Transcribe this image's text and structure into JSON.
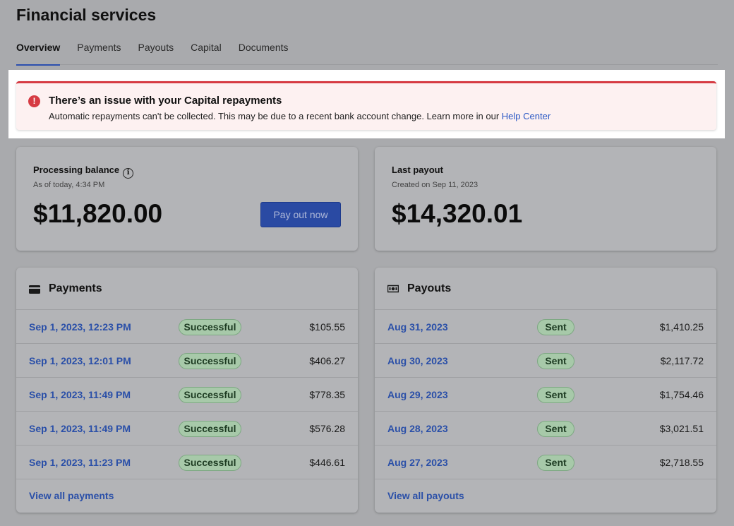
{
  "page": {
    "title": "Financial services"
  },
  "tabs": [
    {
      "label": "Overview",
      "active": true
    },
    {
      "label": "Payments",
      "active": false
    },
    {
      "label": "Payouts",
      "active": false
    },
    {
      "label": "Capital",
      "active": false
    },
    {
      "label": "Documents",
      "active": false
    }
  ],
  "alert": {
    "title": "There’s an issue with your Capital repayments",
    "message": "Automatic repayments can't be collected. This may be due to a recent bank account change. Learn more in our ",
    "link": "Help Center",
    "icon": "error-icon",
    "color": "#d63b43"
  },
  "balance": {
    "label": "Processing balance",
    "info_icon": "i",
    "subtext": "As of today, 4:34 PM",
    "amount": "$11,820.00",
    "button": "Pay out now"
  },
  "last_payout": {
    "label": "Last payout",
    "subtext": "Created on Sep 11, 2023",
    "amount": "$14,320.01"
  },
  "payments": {
    "title": "Payments",
    "icon": "card-icon",
    "rows": [
      {
        "date": "Sep 1, 2023, 12:23 PM",
        "status": "Successful",
        "amount": "$105.55"
      },
      {
        "date": "Sep 1, 2023, 12:01 PM",
        "status": "Successful",
        "amount": "$406.27"
      },
      {
        "date": "Sep 1, 2023, 11:49 PM",
        "status": "Successful",
        "amount": "$778.35"
      },
      {
        "date": "Sep 1, 2023, 11:49 PM",
        "status": "Successful",
        "amount": "$576.28"
      },
      {
        "date": "Sep 1, 2023, 11:23 PM",
        "status": "Successful",
        "amount": "$446.61"
      }
    ],
    "view_all": "View all payments"
  },
  "payouts": {
    "title": "Payouts",
    "icon": "cash-icon",
    "rows": [
      {
        "date": "Aug 31, 2023",
        "status": "Sent",
        "amount": "$1,410.25"
      },
      {
        "date": "Aug 30, 2023",
        "status": "Sent",
        "amount": "$2,117.72"
      },
      {
        "date": "Aug 29, 2023",
        "status": "Sent",
        "amount": "$1,754.46"
      },
      {
        "date": "Aug 28, 2023",
        "status": "Sent",
        "amount": "$3,021.51"
      },
      {
        "date": "Aug 27, 2023",
        "status": "Sent",
        "amount": "$2,718.55"
      }
    ],
    "view_all": "View all payouts"
  }
}
